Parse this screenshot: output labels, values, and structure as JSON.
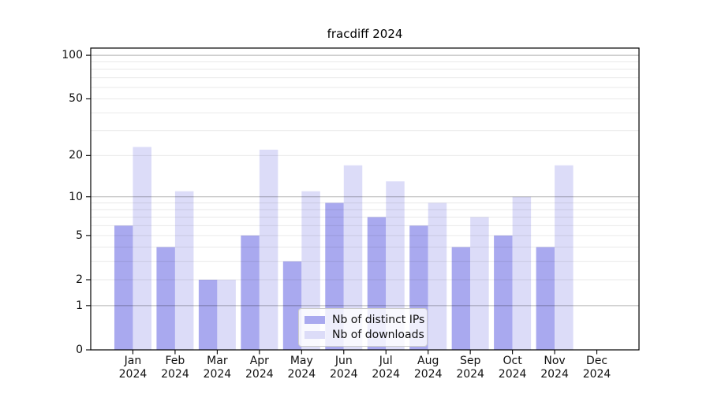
{
  "chart_data": {
    "type": "bar",
    "title": "fracdiff 2024",
    "categories": [
      "Jan",
      "Feb",
      "Mar",
      "Apr",
      "May",
      "Jun",
      "Jul",
      "Aug",
      "Sep",
      "Oct",
      "Nov",
      "Dec"
    ],
    "x_tick_second_line": "2024",
    "series": [
      {
        "name": "Nb of distinct IPs",
        "color": "#a9a9ef",
        "values": [
          6,
          4,
          2,
          5,
          3,
          9,
          7,
          6,
          4,
          5,
          4,
          0
        ]
      },
      {
        "name": "Nb of downloads",
        "color": "#dcdcf8",
        "values": [
          23,
          11,
          2,
          22,
          11,
          17,
          13,
          9,
          7,
          10,
          17,
          0
        ]
      }
    ],
    "yscale": "log1p",
    "ylim": [
      0,
      112
    ],
    "y_ticks": [
      0,
      1,
      2,
      5,
      10,
      20,
      50,
      100
    ],
    "y_major_gridlines": [
      1,
      10,
      100
    ],
    "y_minor_gridlines": [
      2,
      3,
      4,
      5,
      6,
      7,
      8,
      9,
      20,
      30,
      40,
      50,
      60,
      70,
      80,
      90
    ],
    "grid": true,
    "legend_position": "lower center, inside axes",
    "xlabel": "",
    "ylabel": ""
  },
  "colors": {
    "background": "#ffffff",
    "series_ips": "#a9a9ef",
    "series_downloads": "#dcdcf8",
    "major_grid": "#b3b3b3",
    "minor_grid": "#e9e9e9",
    "axis": "#000000",
    "text": "#111111",
    "legend_border": "#cccccc"
  }
}
